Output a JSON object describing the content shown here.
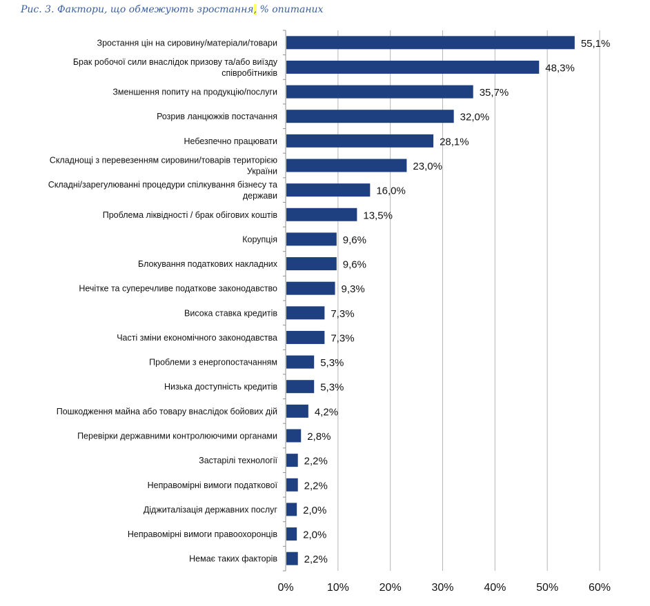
{
  "caption": {
    "prefix": "Рис.  3. Фактори, що обмежують зростання",
    "highlight": ",",
    "suffix": " % опитаних"
  },
  "colors": {
    "bar": "#1f4080",
    "grid": "#b5b5b5",
    "text": "#111111",
    "caption": "#3b5f9e"
  },
  "chart_data": {
    "type": "bar",
    "orientation": "horizontal",
    "categories": [
      [
        "Зростання цін на сировину/матеріали/товари"
      ],
      [
        "Брак робочої сили внаслідок призову та/або виїзду",
        "співробітників"
      ],
      [
        "Зменшення попиту на продукцію/послуги"
      ],
      [
        "Розрив ланцюжків постачання"
      ],
      [
        "Небезпечно працювати"
      ],
      [
        "Складнощі з перевезенням сировини/товарів територією",
        "України"
      ],
      [
        "Складні/зарегулюванні процедури спілкування бізнесу та",
        "держави"
      ],
      [
        "Проблема ліквідності / брак обігових коштів"
      ],
      [
        "Корупція"
      ],
      [
        "Блокування податкових накладних"
      ],
      [
        "Нечітке та суперечливе податкове законодавство"
      ],
      [
        "Висока ставка кредитів"
      ],
      [
        "Часті зміни економічного законодавства"
      ],
      [
        "Проблеми з енергопостачанням"
      ],
      [
        "Низька доступність кредитів"
      ],
      [
        "Пошкодження майна або товару внаслідок бойових дій"
      ],
      [
        "Перевірки державними  контролюючими органами"
      ],
      [
        "Застарілі технології"
      ],
      [
        "Неправомірні вимоги податкової"
      ],
      [
        "Діджиталізація державних послуг"
      ],
      [
        "Неправомірні вимоги правоохоронців"
      ],
      [
        "Немає таких факторів"
      ]
    ],
    "values": [
      55.1,
      48.3,
      35.7,
      32.0,
      28.1,
      23.0,
      16.0,
      13.5,
      9.6,
      9.6,
      9.3,
      7.3,
      7.3,
      5.3,
      5.3,
      4.2,
      2.8,
      2.2,
      2.2,
      2.0,
      2.0,
      2.2
    ],
    "value_labels": [
      "55,1%",
      "48,3%",
      "35,7%",
      "32,0%",
      "28,1%",
      "23,0%",
      "16,0%",
      "13,5%",
      "9,6%",
      "9,6%",
      "9,3%",
      "7,3%",
      "7,3%",
      "5,3%",
      "5,3%",
      "4,2%",
      "2,8%",
      "2,2%",
      "2,2%",
      "2,0%",
      "2,0%",
      "2,2%"
    ],
    "xlim": [
      0,
      60
    ],
    "xticks": [
      0,
      10,
      20,
      30,
      40,
      50,
      60
    ],
    "xtick_labels": [
      "0%",
      "10%",
      "20%",
      "30%",
      "40%",
      "50%",
      "60%"
    ],
    "grid": "vertical",
    "legend": "none"
  }
}
